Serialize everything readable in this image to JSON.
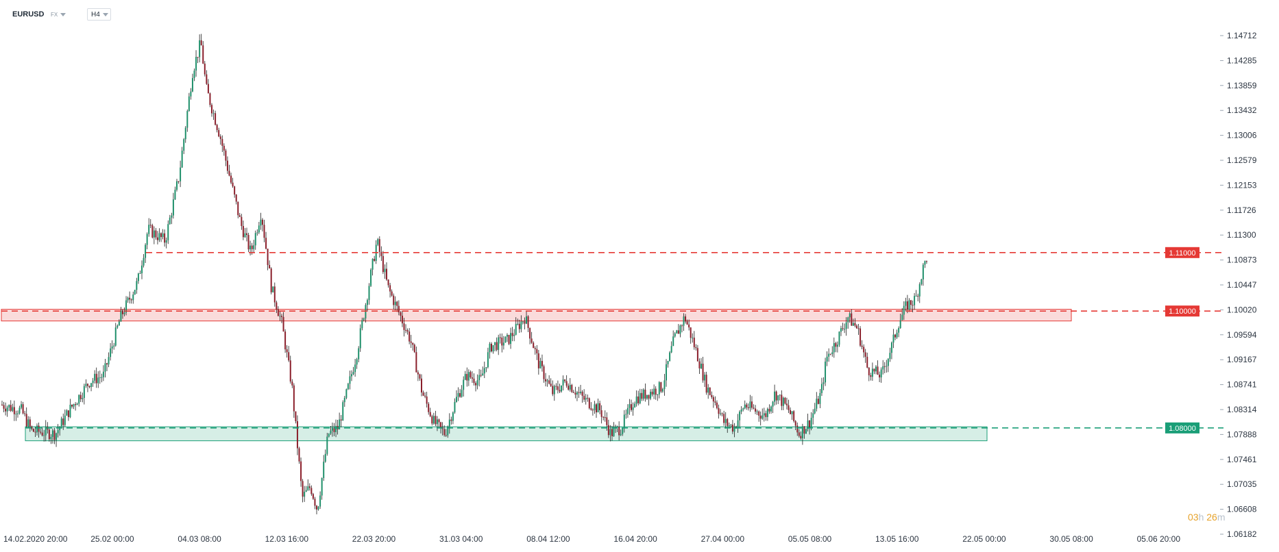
{
  "header": {
    "symbol": "EURUSD",
    "market": "FX",
    "timeframe": "H4"
  },
  "timer": {
    "hours": "03",
    "hours_unit": "h",
    "minutes": "26",
    "minutes_unit": "m"
  },
  "colors": {
    "up_candle": "#1f8f6a",
    "down_candle": "#8a1f2b",
    "resistance": "#e53935",
    "support": "#1a9e77",
    "axis_text": "#2b3440"
  },
  "chart_data": {
    "type": "candlestick",
    "symbol": "EURUSD",
    "timeframe": "H4",
    "y_axis": {
      "side": "right",
      "ticks": [
        "1.14712",
        "1.14285",
        "1.13859",
        "1.13432",
        "1.13006",
        "1.12579",
        "1.12153",
        "1.11726",
        "1.11300",
        "1.10873",
        "1.10447",
        "1.10020",
        "1.09594",
        "1.09167",
        "1.08741",
        "1.08314",
        "1.07888",
        "1.07461",
        "1.07035",
        "1.06608",
        "1.06182"
      ],
      "range": [
        1.061,
        1.151
      ]
    },
    "x_axis": {
      "ticks": [
        "14.02.2020  20:00",
        "25.02  00:00",
        "04.03  08:00",
        "12.03  16:00",
        "22.03  20:00",
        "31.03  04:00",
        "08.04  12:00",
        "16.04  20:00",
        "27.04  00:00",
        "05.05  08:00",
        "13.05  16:00",
        "22.05  00:00",
        "30.05  08:00",
        "05.06  20:00"
      ]
    },
    "price_path": [
      [
        0,
        1.084
      ],
      [
        30,
        1.083
      ],
      [
        45,
        1.0795
      ],
      [
        80,
        1.079
      ],
      [
        100,
        1.083
      ],
      [
        130,
        1.088
      ],
      [
        150,
        1.089
      ],
      [
        175,
        1.099
      ],
      [
        200,
        1.105
      ],
      [
        215,
        1.114
      ],
      [
        240,
        1.112
      ],
      [
        260,
        1.123
      ],
      [
        270,
        1.132
      ],
      [
        280,
        1.141
      ],
      [
        292,
        1.146
      ],
      [
        300,
        1.138
      ],
      [
        320,
        1.13
      ],
      [
        340,
        1.12
      ],
      [
        350,
        1.115
      ],
      [
        365,
        1.11
      ],
      [
        380,
        1.117
      ],
      [
        395,
        1.104
      ],
      [
        410,
        1.098
      ],
      [
        425,
        1.087
      ],
      [
        440,
        1.068
      ],
      [
        452,
        1.07
      ],
      [
        462,
        1.066
      ],
      [
        478,
        1.079
      ],
      [
        492,
        1.08
      ],
      [
        505,
        1.086
      ],
      [
        520,
        1.093
      ],
      [
        535,
        1.103
      ],
      [
        549,
        1.112
      ],
      [
        565,
        1.104
      ],
      [
        580,
        1.1
      ],
      [
        598,
        1.095
      ],
      [
        615,
        1.086
      ],
      [
        632,
        1.081
      ],
      [
        648,
        1.079
      ],
      [
        665,
        1.085
      ],
      [
        680,
        1.089
      ],
      [
        700,
        1.088
      ],
      [
        715,
        1.094
      ],
      [
        740,
        1.095
      ],
      [
        765,
        1.099
      ],
      [
        785,
        1.091
      ],
      [
        805,
        1.086
      ],
      [
        825,
        1.088
      ],
      [
        850,
        1.085
      ],
      [
        875,
        1.083
      ],
      [
        890,
        1.079
      ],
      [
        905,
        1.08
      ],
      [
        925,
        1.085
      ],
      [
        945,
        1.086
      ],
      [
        965,
        1.087
      ],
      [
        982,
        1.095
      ],
      [
        998,
        1.099
      ],
      [
        1015,
        1.093
      ],
      [
        1030,
        1.087
      ],
      [
        1045,
        1.084
      ],
      [
        1055,
        1.081
      ],
      [
        1070,
        1.08
      ],
      [
        1085,
        1.084
      ],
      [
        1100,
        1.083
      ],
      [
        1115,
        1.082
      ],
      [
        1130,
        1.086
      ],
      [
        1150,
        1.083
      ],
      [
        1165,
        1.079
      ],
      [
        1180,
        1.081
      ],
      [
        1197,
        1.086
      ],
      [
        1205,
        1.092
      ],
      [
        1220,
        1.095
      ],
      [
        1236,
        1.099
      ],
      [
        1250,
        1.097
      ],
      [
        1265,
        1.09
      ],
      [
        1285,
        1.089
      ],
      [
        1300,
        1.094
      ],
      [
        1310,
        1.098
      ],
      [
        1322,
        1.101
      ],
      [
        1335,
        1.102
      ],
      [
        1345,
        1.107
      ],
      [
        1352,
        1.1095
      ]
    ],
    "levels": [
      {
        "label": "1.11000",
        "price": 1.11,
        "type": "resistance",
        "style": "dashed"
      },
      {
        "label": "1.10000",
        "price": 1.1,
        "type": "resistance",
        "style": "dashed"
      },
      {
        "label": "1.08000",
        "price": 1.08,
        "type": "support",
        "style": "dashed"
      }
    ],
    "zones": [
      {
        "type": "resistance",
        "price_top": 1.1003,
        "price_bottom": 1.0983
      },
      {
        "type": "support",
        "price_top": 1.0802,
        "price_bottom": 1.0778
      }
    ],
    "grid": false,
    "legend": "none"
  }
}
